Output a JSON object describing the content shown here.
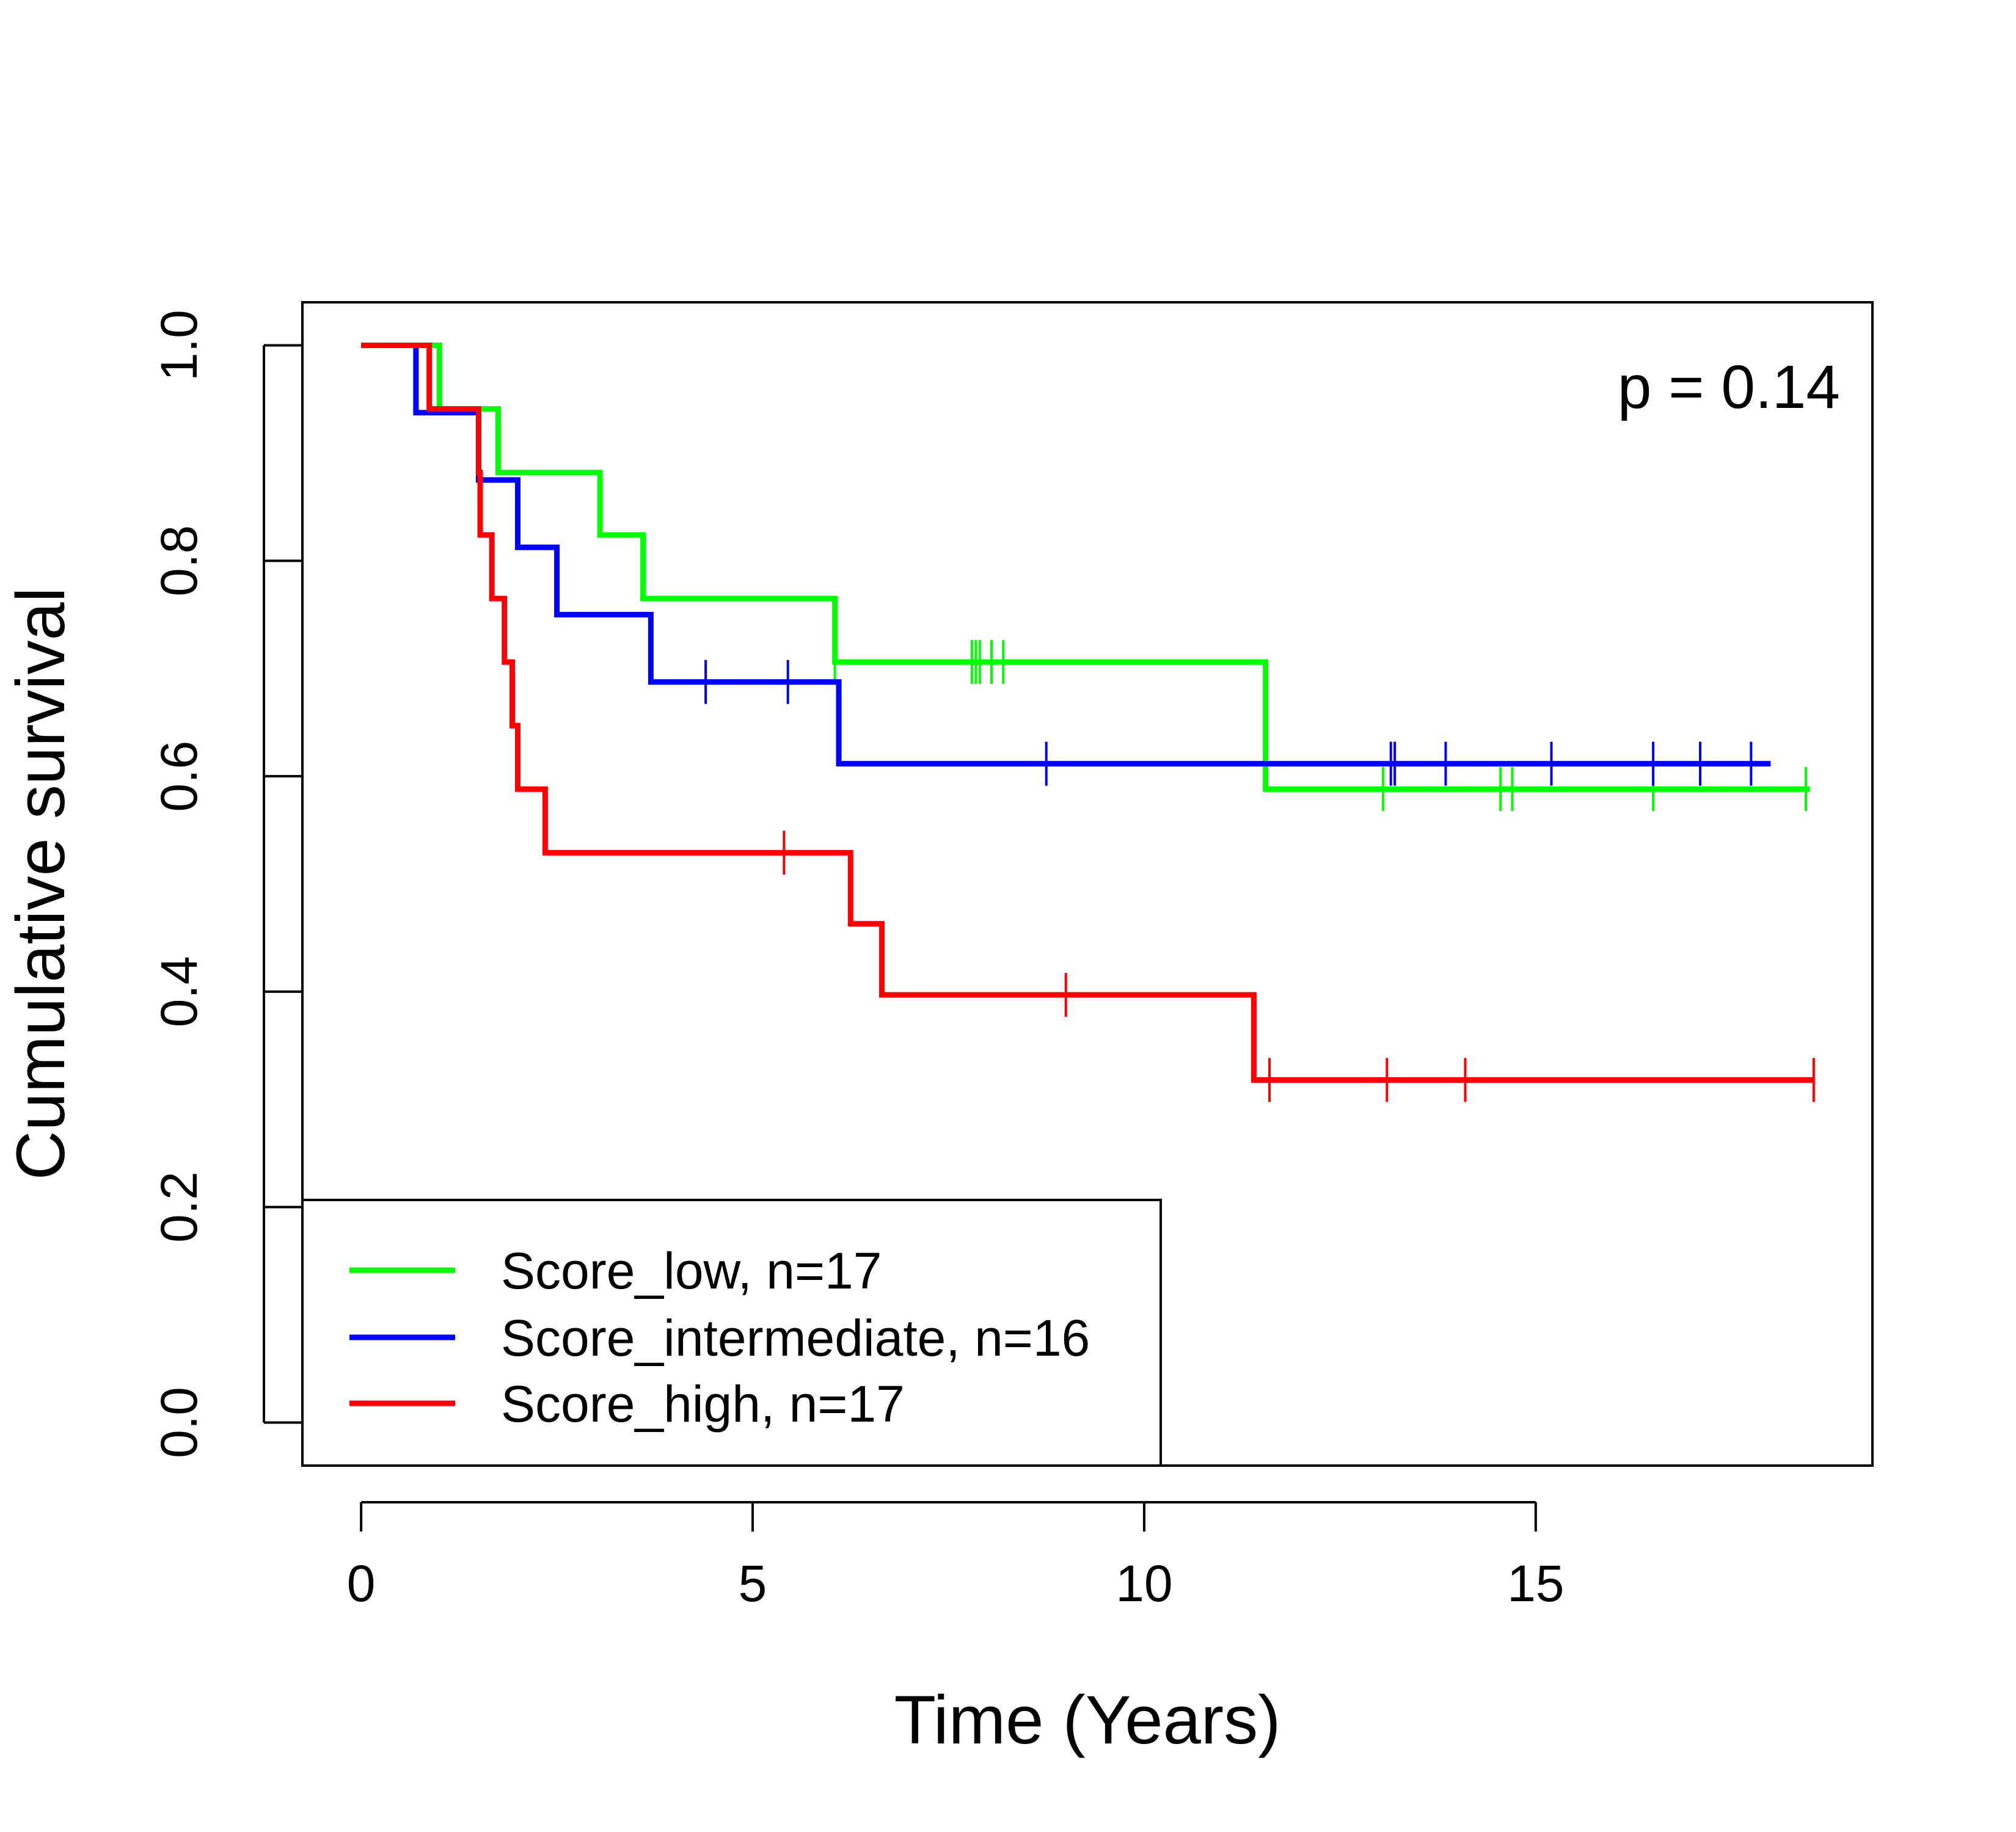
{
  "chart_data": {
    "type": "line",
    "subtype": "kaplan-meier",
    "title": "",
    "xlabel": "Time (Years)",
    "ylabel": "Cumulative survival",
    "xlim": [
      -0.75,
      19.3
    ],
    "ylim": [
      -0.04,
      1.04
    ],
    "xticks": [
      0,
      5,
      10,
      15
    ],
    "xtick_labels": [
      "0",
      "5",
      "10",
      "15"
    ],
    "yticks": [
      0.0,
      0.2,
      0.4,
      0.6,
      0.8,
      1.0
    ],
    "ytick_labels": [
      "0.0",
      "0.2",
      "0.4",
      "0.6",
      "0.8",
      "1.0"
    ],
    "grid": false,
    "legend_position": "bottom-left",
    "annotation": "p = 0.14",
    "series": [
      {
        "name": "Score_low, n=17",
        "color": "#00ff00",
        "steps": [
          [
            0,
            1.0
          ],
          [
            1.0,
            0.941
          ],
          [
            1.75,
            0.882
          ],
          [
            3.05,
            0.824
          ],
          [
            3.6,
            0.765
          ],
          [
            6.05,
            0.706
          ],
          [
            11.55,
            0.588
          ]
        ],
        "end": 18.5,
        "censored": [
          [
            6.05,
            0.706
          ],
          [
            7.8,
            0.706
          ],
          [
            7.85,
            0.706
          ],
          [
            7.9,
            0.706
          ],
          [
            8.05,
            0.706
          ],
          [
            8.2,
            0.706
          ],
          [
            13.05,
            0.588
          ],
          [
            14.55,
            0.588
          ],
          [
            14.7,
            0.588
          ],
          [
            16.5,
            0.588
          ],
          [
            18.45,
            0.588
          ]
        ]
      },
      {
        "name": "Score_intermediate, n=16",
        "color": "#0000ff",
        "steps": [
          [
            0,
            1.0
          ],
          [
            0.7,
            0.9375
          ],
          [
            1.5,
            0.875
          ],
          [
            2.0,
            0.8125
          ],
          [
            2.5,
            0.75
          ],
          [
            3.7,
            0.6875
          ],
          [
            6.1,
            0.6116
          ]
        ],
        "end": 18.0,
        "censored": [
          [
            4.4,
            0.6875
          ],
          [
            5.45,
            0.6875
          ],
          [
            8.75,
            0.6116
          ],
          [
            13.15,
            0.6116
          ],
          [
            13.2,
            0.6116
          ],
          [
            13.85,
            0.6116
          ],
          [
            15.2,
            0.6116
          ],
          [
            16.5,
            0.6116
          ],
          [
            17.1,
            0.6116
          ],
          [
            17.75,
            0.6116
          ]
        ]
      },
      {
        "name": "Score_high, n=17",
        "color": "#ff0000",
        "steps": [
          [
            0,
            1.0
          ],
          [
            0.87,
            0.941
          ],
          [
            1.5,
            0.882
          ],
          [
            1.52,
            0.824
          ],
          [
            1.67,
            0.765
          ],
          [
            1.83,
            0.706
          ],
          [
            1.93,
            0.647
          ],
          [
            2.0,
            0.588
          ],
          [
            2.35,
            0.529
          ],
          [
            6.25,
            0.463
          ],
          [
            6.65,
            0.397
          ],
          [
            11.4,
            0.318
          ]
        ],
        "end": 18.55,
        "censored": [
          [
            5.4,
            0.529
          ],
          [
            9.0,
            0.397
          ],
          [
            11.6,
            0.318
          ],
          [
            13.1,
            0.318
          ],
          [
            14.1,
            0.318
          ],
          [
            18.55,
            0.318
          ]
        ]
      }
    ]
  }
}
